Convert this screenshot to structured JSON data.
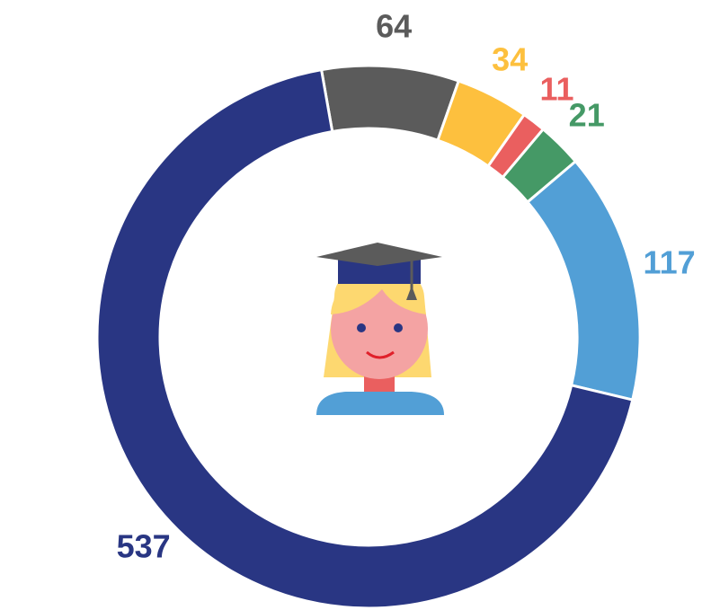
{
  "chart_data": {
    "type": "donut",
    "values": [
      64,
      34,
      11,
      21,
      117,
      537
    ],
    "colors": [
      "#5b5b5b",
      "#fdc03e",
      "#ea5f5f",
      "#459966",
      "#529fd6",
      "#293683"
    ]
  }
}
